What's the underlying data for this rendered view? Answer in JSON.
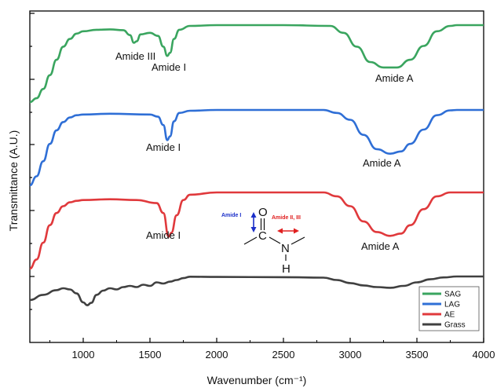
{
  "chart_data": {
    "type": "line",
    "xlabel": "Wavenumber (cm⁻¹)",
    "ylabel": "Transmittance (A.U.)",
    "xlim": [
      600,
      4000
    ],
    "x_ticks": [
      "1000",
      "1500",
      "2000",
      "2500",
      "3000",
      "3500",
      "4000"
    ],
    "x_tick_values": [
      1000,
      1500,
      2000,
      2500,
      3000,
      3500,
      4000
    ],
    "grid": false,
    "legend_position": "bottom-right",
    "series": [
      {
        "name": "SAG",
        "color": "#3aa55f",
        "points": [
          [
            600,
            0.0
          ],
          [
            650,
            0.05
          ],
          [
            700,
            0.17
          ],
          [
            750,
            0.35
          ],
          [
            800,
            0.55
          ],
          [
            850,
            0.72
          ],
          [
            900,
            0.82
          ],
          [
            950,
            0.89
          ],
          [
            1000,
            0.92
          ],
          [
            1100,
            0.94
          ],
          [
            1200,
            0.945
          ],
          [
            1300,
            0.935
          ],
          [
            1350,
            0.87
          ],
          [
            1380,
            0.77
          ],
          [
            1400,
            0.79
          ],
          [
            1430,
            0.88
          ],
          [
            1500,
            0.9
          ],
          [
            1560,
            0.86
          ],
          [
            1600,
            0.72
          ],
          [
            1630,
            0.6
          ],
          [
            1650,
            0.64
          ],
          [
            1680,
            0.82
          ],
          [
            1720,
            0.94
          ],
          [
            1800,
            0.99
          ],
          [
            2000,
            1.0
          ],
          [
            2500,
            1.0
          ],
          [
            2850,
            0.99
          ],
          [
            2950,
            0.9
          ],
          [
            3050,
            0.72
          ],
          [
            3150,
            0.52
          ],
          [
            3250,
            0.45
          ],
          [
            3350,
            0.45
          ],
          [
            3450,
            0.55
          ],
          [
            3550,
            0.73
          ],
          [
            3650,
            0.92
          ],
          [
            3750,
            0.99
          ],
          [
            3800,
            1.0
          ],
          [
            4000,
            1.0
          ]
        ]
      },
      {
        "name": "LAG",
        "color": "#2f6fd6",
        "points": [
          [
            600,
            0.0
          ],
          [
            650,
            0.12
          ],
          [
            700,
            0.32
          ],
          [
            750,
            0.55
          ],
          [
            800,
            0.73
          ],
          [
            850,
            0.84
          ],
          [
            900,
            0.9
          ],
          [
            950,
            0.93
          ],
          [
            1000,
            0.94
          ],
          [
            1200,
            0.95
          ],
          [
            1500,
            0.94
          ],
          [
            1560,
            0.91
          ],
          [
            1600,
            0.8
          ],
          [
            1630,
            0.6
          ],
          [
            1650,
            0.65
          ],
          [
            1680,
            0.85
          ],
          [
            1720,
            0.96
          ],
          [
            1800,
            0.99
          ],
          [
            2000,
            1.0
          ],
          [
            2800,
            1.0
          ],
          [
            2900,
            0.96
          ],
          [
            3000,
            0.87
          ],
          [
            3100,
            0.67
          ],
          [
            3200,
            0.48
          ],
          [
            3300,
            0.42
          ],
          [
            3380,
            0.45
          ],
          [
            3450,
            0.55
          ],
          [
            3550,
            0.74
          ],
          [
            3650,
            0.93
          ],
          [
            3750,
            0.995
          ],
          [
            3800,
            1.0
          ],
          [
            4000,
            1.0
          ]
        ]
      },
      {
        "name": "AE",
        "color": "#e0393c",
        "points": [
          [
            600,
            0.0
          ],
          [
            650,
            0.12
          ],
          [
            700,
            0.34
          ],
          [
            750,
            0.57
          ],
          [
            800,
            0.73
          ],
          [
            850,
            0.82
          ],
          [
            900,
            0.87
          ],
          [
            950,
            0.89
          ],
          [
            1000,
            0.9
          ],
          [
            1200,
            0.91
          ],
          [
            1400,
            0.9
          ],
          [
            1550,
            0.86
          ],
          [
            1600,
            0.73
          ],
          [
            1640,
            0.42
          ],
          [
            1660,
            0.47
          ],
          [
            1700,
            0.7
          ],
          [
            1750,
            0.9
          ],
          [
            1800,
            0.97
          ],
          [
            2000,
            1.0
          ],
          [
            2800,
            1.0
          ],
          [
            2900,
            0.95
          ],
          [
            3000,
            0.82
          ],
          [
            3100,
            0.62
          ],
          [
            3200,
            0.48
          ],
          [
            3300,
            0.43
          ],
          [
            3380,
            0.46
          ],
          [
            3450,
            0.57
          ],
          [
            3550,
            0.78
          ],
          [
            3650,
            0.95
          ],
          [
            3750,
            1.0
          ],
          [
            4000,
            1.0
          ]
        ]
      },
      {
        "name": "Grass",
        "color": "#404040",
        "points": [
          [
            600,
            0.0
          ],
          [
            700,
            0.22
          ],
          [
            800,
            0.42
          ],
          [
            850,
            0.5
          ],
          [
            900,
            0.45
          ],
          [
            950,
            0.28
          ],
          [
            1000,
            -0.1
          ],
          [
            1030,
            -0.22
          ],
          [
            1060,
            -0.12
          ],
          [
            1100,
            0.22
          ],
          [
            1150,
            0.4
          ],
          [
            1200,
            0.5
          ],
          [
            1250,
            0.45
          ],
          [
            1300,
            0.55
          ],
          [
            1350,
            0.6
          ],
          [
            1400,
            0.55
          ],
          [
            1450,
            0.65
          ],
          [
            1500,
            0.6
          ],
          [
            1550,
            0.75
          ],
          [
            1600,
            0.7
          ],
          [
            1650,
            0.78
          ],
          [
            1700,
            0.85
          ],
          [
            1750,
            0.93
          ],
          [
            1800,
            0.99
          ],
          [
            2000,
            0.98
          ],
          [
            2500,
            0.97
          ],
          [
            2800,
            0.95
          ],
          [
            2900,
            0.85
          ],
          [
            3000,
            0.72
          ],
          [
            3100,
            0.62
          ],
          [
            3200,
            0.55
          ],
          [
            3300,
            0.52
          ],
          [
            3400,
            0.6
          ],
          [
            3500,
            0.75
          ],
          [
            3600,
            0.88
          ],
          [
            3700,
            0.96
          ],
          [
            3800,
            1.0
          ],
          [
            4000,
            1.0
          ]
        ]
      }
    ],
    "annotations": [
      {
        "text": "Amide III",
        "series": "SAG"
      },
      {
        "text": "Amide I",
        "series": "SAG"
      },
      {
        "text": "Amide A",
        "series": "SAG"
      },
      {
        "text": "Amide I",
        "series": "LAG"
      },
      {
        "text": "Amide A",
        "series": "LAG"
      },
      {
        "text": "Amide I",
        "series": "AE"
      },
      {
        "text": "Amide A",
        "series": "AE"
      }
    ],
    "structure_labels": {
      "amide_i": "Amide I",
      "amide_ii_iii": "Amide II, III",
      "atom_o": "O",
      "atom_c": "C",
      "atom_n": "N",
      "atom_h": "H"
    },
    "colors": {
      "amide_i_arrow": "#1a2ec9",
      "amide_ii_iii_arrow": "#e02020",
      "axis": "#000000"
    }
  }
}
